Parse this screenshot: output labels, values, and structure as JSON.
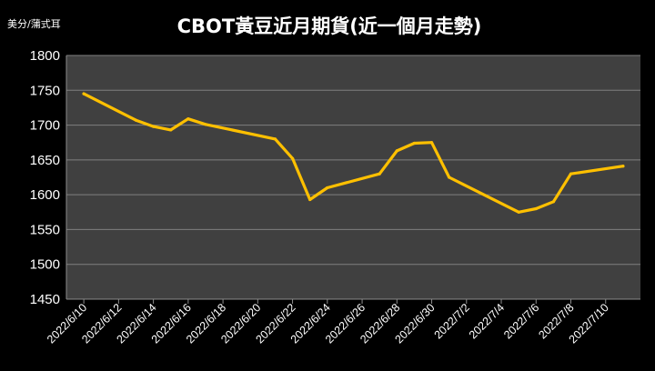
{
  "chart_data": {
    "type": "line",
    "title": "CBOT黃豆近月期貨(近一個月走勢)",
    "unit": "美分/蒲式耳",
    "xlabel": "",
    "ylabel": "",
    "ylim": [
      1450,
      1800
    ],
    "yticks": [
      1450,
      1500,
      1550,
      1600,
      1650,
      1700,
      1750,
      1800
    ],
    "xticks": [
      "2022/6/10",
      "2022/6/12",
      "2022/6/14",
      "2022/6/16",
      "2022/6/18",
      "2022/6/20",
      "2022/6/22",
      "2022/6/24",
      "2022/6/26",
      "2022/6/28",
      "2022/6/30",
      "2022/7/2",
      "2022/7/4",
      "2022/7/6",
      "2022/7/8",
      "2022/7/10"
    ],
    "xlim": [
      "2022/6/9",
      "2022/7/12"
    ],
    "grid": "horizontal",
    "legend": "none",
    "colors": {
      "background": "#000000",
      "plot_area": "#404040",
      "line": "#ffc000",
      "grid": "#7f7f7f",
      "text": "#ffffff"
    },
    "x": [
      "2022/6/10",
      "2022/6/13",
      "2022/6/14",
      "2022/6/15",
      "2022/6/16",
      "2022/6/17",
      "2022/6/21",
      "2022/6/22",
      "2022/6/23",
      "2022/6/24",
      "2022/6/27",
      "2022/6/28",
      "2022/6/29",
      "2022/6/30",
      "2022/7/1",
      "2022/7/5",
      "2022/7/6",
      "2022/7/7",
      "2022/7/8",
      "2022/7/11"
    ],
    "series": [
      {
        "values": [
          1745,
          1707,
          1698,
          1693,
          1709,
          1701,
          1680,
          1652,
          1593,
          1610,
          1630,
          1663,
          1674,
          1675,
          1625,
          1575,
          1580,
          1590,
          1630,
          1641
        ]
      }
    ]
  }
}
